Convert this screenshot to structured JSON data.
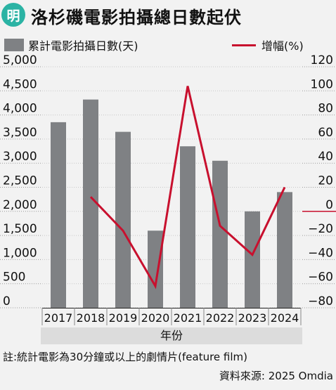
{
  "header": {
    "logo_text": "明",
    "title": "洛杉磯電影拍攝總日數起伏"
  },
  "legend": {
    "bar_label": "累計電影拍攝日數(天)",
    "line_label": "增幅(%)"
  },
  "colors": {
    "bar": "#7f8184",
    "line": "#c8102e",
    "logo": "#2bb3a4",
    "background": "#f2f2f2"
  },
  "chart_data": {
    "type": "bar",
    "categories": [
      "2017",
      "2018",
      "2019",
      "2020",
      "2021",
      "2022",
      "2023",
      "2024"
    ],
    "xlabel": "年份",
    "series": [
      {
        "name": "累計電影拍攝日數(天)",
        "type": "bar",
        "axis": "left",
        "values": [
          3850,
          4320,
          3650,
          1600,
          3350,
          3050,
          2000,
          2400
        ]
      },
      {
        "name": "增幅(%)",
        "type": "line",
        "axis": "right",
        "values": [
          null,
          12,
          -16,
          -62,
          104,
          -12,
          -36,
          20
        ]
      }
    ],
    "y_left": {
      "ylim": [
        0,
        5000
      ],
      "ticks": [
        0,
        500,
        1000,
        1500,
        2000,
        2500,
        3000,
        3500,
        4000,
        4500,
        5000
      ],
      "tick_labels": [
        "0",
        "500",
        "1,000",
        "1,500",
        "2,000",
        "2,500",
        "3,000",
        "3,500",
        "4,000",
        "4,500",
        "5,000"
      ]
    },
    "y_right": {
      "ylim": [
        -80,
        120
      ],
      "ticks": [
        -80,
        -60,
        -40,
        -20,
        0,
        20,
        40,
        60,
        80,
        100,
        120
      ],
      "tick_labels": [
        "−80",
        "−60",
        "−40",
        "−20",
        "0",
        "20",
        "40",
        "60",
        "80",
        "100",
        "120"
      ]
    },
    "grid": true
  },
  "footer": {
    "note": "註:統計電影為30分鐘或以上的劇情片(feature film)",
    "source": "資料來源: 2025 Omdia"
  }
}
